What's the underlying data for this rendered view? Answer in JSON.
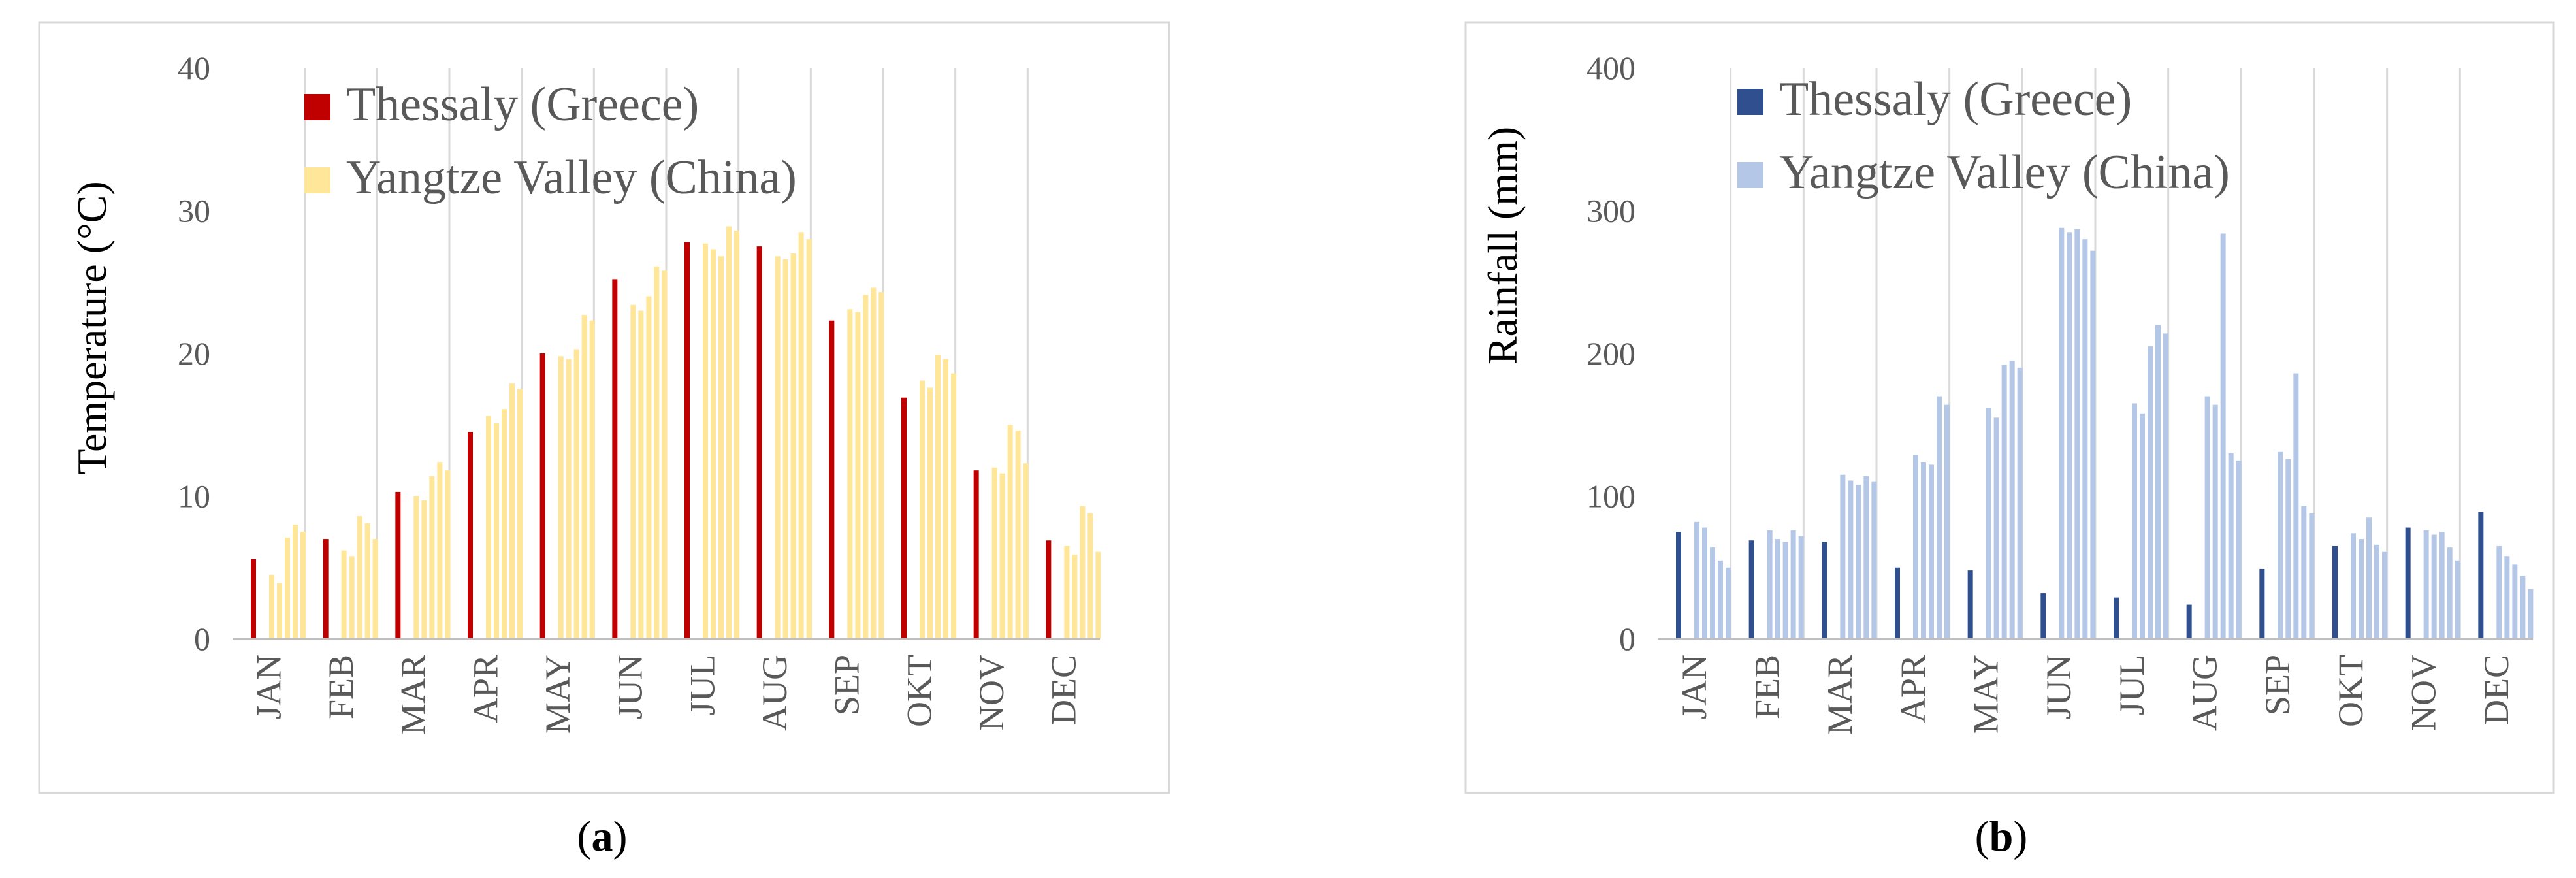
{
  "chart_data": [
    {
      "panel": "a",
      "type": "bar",
      "ylabel": "Temperature (°C)",
      "ylim": [
        0,
        40
      ],
      "yticks": [
        0,
        10,
        20,
        30,
        40
      ],
      "categories": [
        "JAN",
        "FEB",
        "MAR",
        "APR",
        "MAY",
        "JUN",
        "JUL",
        "AUG",
        "SEP",
        "OKT",
        "NOV",
        "DEC"
      ],
      "legend_position": "top-left",
      "grid": false,
      "colors": {
        "primary": "#c00000",
        "secondary": "#ffe699"
      },
      "series": [
        {
          "name": "Thessaly (Greece)",
          "values": [
            5.6,
            7.0,
            10.3,
            14.5,
            20.0,
            25.2,
            27.8,
            27.5,
            22.3,
            16.9,
            11.8,
            6.9
          ]
        },
        {
          "name": "Yangtze Valley (China)",
          "values": [
            [
              4.5,
              3.9,
              7.1,
              8.0,
              7.5
            ],
            [
              6.2,
              5.8,
              8.6,
              8.1,
              7.0
            ],
            [
              10.0,
              9.7,
              11.4,
              12.4,
              11.8
            ],
            [
              15.6,
              15.1,
              16.1,
              17.9,
              17.5
            ],
            [
              19.8,
              19.6,
              20.3,
              22.7,
              22.3
            ],
            [
              23.4,
              23.0,
              24.0,
              26.1,
              25.8
            ],
            [
              27.7,
              27.3,
              26.8,
              28.9,
              28.6
            ],
            [
              26.8,
              26.6,
              27.0,
              28.5,
              28.0
            ],
            [
              23.1,
              22.9,
              24.1,
              24.6,
              24.3
            ],
            [
              18.1,
              17.6,
              19.9,
              19.6,
              18.6
            ],
            [
              12.0,
              11.6,
              15.0,
              14.6,
              12.3
            ],
            [
              6.5,
              5.9,
              9.3,
              8.8,
              6.1
            ]
          ]
        }
      ]
    },
    {
      "panel": "b",
      "type": "bar",
      "ylabel": "Rainfall (mm)",
      "ylim": [
        0,
        400
      ],
      "yticks": [
        0,
        100,
        200,
        300,
        400
      ],
      "categories": [
        "JAN",
        "FEB",
        "MAR",
        "APR",
        "MAY",
        "JUN",
        "JUL",
        "AUG",
        "SEP",
        "OKT",
        "NOV",
        "DEC"
      ],
      "legend_position": "top-left",
      "grid": false,
      "colors": {
        "primary": "#2f4f8f",
        "secondary": "#b4c7e7"
      },
      "series": [
        {
          "name": "Thessaly (Greece)",
          "values": [
            75,
            69,
            68,
            50,
            48,
            32,
            29,
            24,
            49,
            65,
            78,
            89
          ]
        },
        {
          "name": "Yangtze Valley (China)",
          "values": [
            [
              82,
              78,
              64,
              55,
              50
            ],
            [
              76,
              70,
              68,
              76,
              72
            ],
            [
              115,
              111,
              108,
              114,
              110
            ],
            [
              129,
              124,
              122,
              170,
              164
            ],
            [
              162,
              155,
              192,
              195,
              190
            ],
            [
              288,
              285,
              287,
              280,
              272
            ],
            [
              165,
              158,
              205,
              220,
              214
            ],
            [
              170,
              164,
              284,
              130,
              125
            ],
            [
              131,
              126,
              186,
              93,
              88
            ],
            [
              74,
              70,
              85,
              66,
              61
            ],
            [
              76,
              73,
              75,
              64,
              55
            ],
            [
              65,
              58,
              52,
              44,
              35
            ]
          ]
        }
      ]
    }
  ],
  "captions": {
    "a_open": "(",
    "a_letter": "a",
    "a_close": ")",
    "b_open": "(",
    "b_letter": "b",
    "b_close": ")"
  }
}
